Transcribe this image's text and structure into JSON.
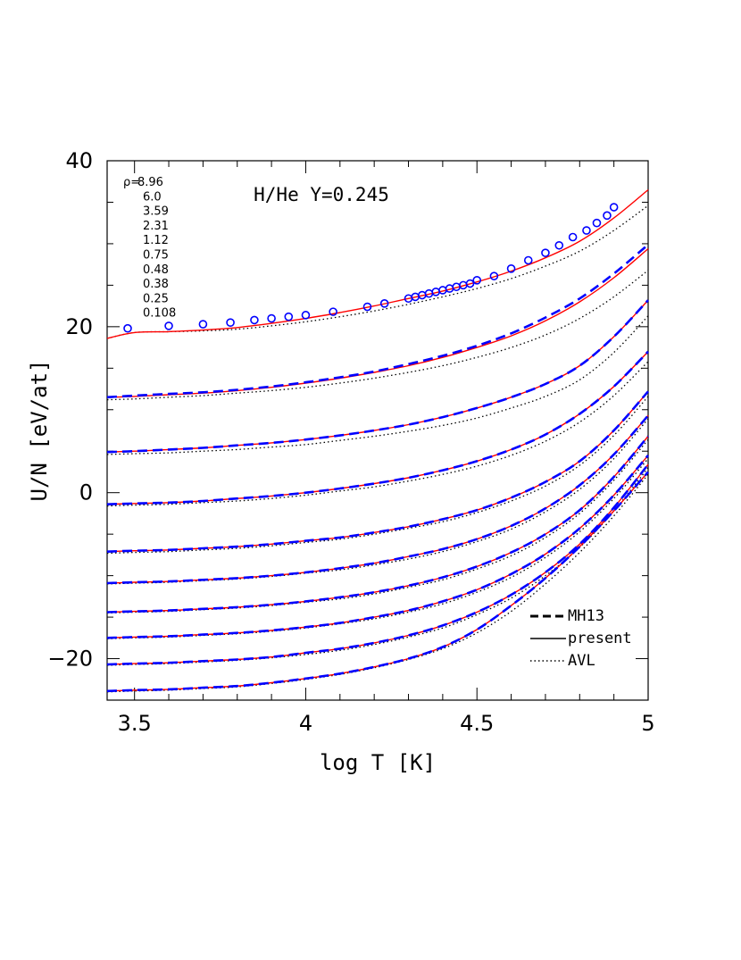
{
  "chart_data": {
    "type": "line",
    "xlabel": "log T [K]",
    "ylabel": "U/N [eV/at]",
    "xlim": [
      3.42,
      5.0
    ],
    "ylim": [
      -25,
      40
    ],
    "x_ticks": [
      3.5,
      4,
      4.5,
      5
    ],
    "y_ticks": [
      -20,
      0,
      20,
      40
    ],
    "x_tick_labels": [
      "3.5",
      "4",
      "4.5",
      "5"
    ],
    "y_tick_labels": [
      "−20",
      "0",
      "20",
      "40"
    ],
    "annotation": "H/He Y=0.245",
    "rho_prefix": "ρ=",
    "rho_labels": [
      "8.96",
      "6.0",
      "3.59",
      "2.31",
      "1.12",
      "0.75",
      "0.48",
      "0.38",
      "0.25",
      "0.108"
    ],
    "legend": [
      {
        "label": "MH13",
        "style": "dashed"
      },
      {
        "label": "present",
        "style": "solid"
      },
      {
        "label": "AVL",
        "style": "dotted"
      }
    ],
    "colors": {
      "present": "#ff0000",
      "MH13": "#0000ff",
      "AVL": "#000000",
      "markers": "#0000ff"
    },
    "x": [
      3.42,
      3.5,
      3.6,
      3.7,
      3.8,
      3.9,
      4.0,
      4.1,
      4.2,
      4.3,
      4.4,
      4.5,
      4.6,
      4.7,
      4.8,
      4.9,
      5.0
    ],
    "series": [
      {
        "rho": "8.96",
        "present": [
          18.6,
          19.3,
          19.4,
          19.6,
          19.9,
          20.4,
          21.0,
          21.7,
          22.5,
          23.4,
          24.3,
          25.4,
          26.7,
          28.3,
          30.3,
          33.1,
          36.5
        ],
        "avl": [
          18.6,
          19.3,
          19.4,
          19.5,
          19.7,
          20.1,
          20.6,
          21.2,
          21.9,
          22.7,
          23.6,
          24.6,
          25.8,
          27.3,
          29.1,
          31.6,
          34.6
        ]
      },
      {
        "rho": "6.0",
        "present": [
          11.5,
          11.6,
          11.8,
          12.0,
          12.3,
          12.7,
          13.2,
          13.8,
          14.5,
          15.3,
          16.3,
          17.5,
          18.9,
          20.7,
          23.0,
          25.9,
          29.4
        ],
        "avl": [
          11.2,
          11.3,
          11.5,
          11.7,
          12.0,
          12.3,
          12.7,
          13.2,
          13.8,
          14.5,
          15.3,
          16.3,
          17.5,
          19.0,
          21.0,
          23.6,
          26.8
        ],
        "mh13": [
          11.5,
          11.7,
          11.9,
          12.1,
          12.4,
          12.8,
          13.3,
          13.9,
          14.6,
          15.5,
          16.5,
          17.7,
          19.2,
          21.1,
          23.4,
          26.4,
          29.9
        ]
      },
      {
        "rho": "3.59",
        "present": [
          4.9,
          5.0,
          5.2,
          5.4,
          5.7,
          6.0,
          6.4,
          6.9,
          7.5,
          8.2,
          9.1,
          10.2,
          11.5,
          13.1,
          15.3,
          18.8,
          23.2
        ],
        "avl": [
          4.6,
          4.7,
          4.8,
          5.0,
          5.2,
          5.5,
          5.8,
          6.3,
          6.8,
          7.4,
          8.1,
          9.0,
          10.2,
          11.6,
          13.6,
          16.9,
          21.3
        ],
        "mh13": [
          4.9,
          5.0,
          5.2,
          5.4,
          5.7,
          6.0,
          6.4,
          6.9,
          7.5,
          8.2,
          9.1,
          10.2,
          11.5,
          13.1,
          15.3,
          18.8,
          23.2
        ]
      },
      {
        "rho": "2.31",
        "present": [
          -1.4,
          -1.3,
          -1.2,
          -1.0,
          -0.7,
          -0.4,
          0.0,
          0.5,
          1.1,
          1.8,
          2.7,
          3.8,
          5.2,
          7.0,
          9.5,
          12.8,
          17.0
        ],
        "avl": [
          -1.6,
          -1.5,
          -1.4,
          -1.2,
          -1.0,
          -0.7,
          -0.3,
          0.2,
          0.7,
          1.4,
          2.2,
          3.2,
          4.5,
          6.2,
          8.5,
          11.7,
          15.8
        ],
        "mh13": [
          -1.4,
          -1.3,
          -1.2,
          -1.0,
          -0.7,
          -0.4,
          0.0,
          0.5,
          1.1,
          1.8,
          2.7,
          3.8,
          5.2,
          7.0,
          9.5,
          12.8,
          17.0
        ]
      },
      {
        "rho": "1.12",
        "present": [
          -7.1,
          -7.0,
          -6.9,
          -6.7,
          -6.5,
          -6.2,
          -5.8,
          -5.4,
          -4.8,
          -4.1,
          -3.2,
          -2.1,
          -0.6,
          1.3,
          3.8,
          7.5,
          12.2
        ],
        "avl": [
          -7.3,
          -7.2,
          -7.1,
          -6.9,
          -6.7,
          -6.4,
          -6.0,
          -5.6,
          -5.0,
          -4.3,
          -3.5,
          -2.4,
          -1.0,
          0.8,
          3.3,
          6.9,
          11.6
        ],
        "mh13": [
          -7.1,
          -7.0,
          -6.9,
          -6.7,
          -6.5,
          -6.2,
          -5.8,
          -5.4,
          -4.8,
          -4.1,
          -3.2,
          -2.1,
          -0.6,
          1.3,
          3.8,
          7.5,
          12.2
        ]
      },
      {
        "rho": "0.75",
        "present": [
          -10.9,
          -10.8,
          -10.7,
          -10.5,
          -10.3,
          -10.0,
          -9.6,
          -9.1,
          -8.5,
          -7.7,
          -6.8,
          -5.6,
          -4.0,
          -1.9,
          0.9,
          4.6,
          9.3
        ],
        "avl": [
          -11.0,
          -10.9,
          -10.8,
          -10.6,
          -10.4,
          -10.1,
          -9.7,
          -9.3,
          -8.7,
          -8.0,
          -7.1,
          -5.9,
          -4.4,
          -2.3,
          0.4,
          4.1,
          8.9
        ],
        "mh13": [
          -10.9,
          -10.8,
          -10.7,
          -10.5,
          -10.3,
          -10.0,
          -9.6,
          -9.1,
          -8.5,
          -7.7,
          -6.8,
          -5.6,
          -4.0,
          -1.9,
          0.9,
          4.6,
          9.3
        ]
      },
      {
        "rho": "0.48",
        "present": [
          -14.4,
          -14.3,
          -14.2,
          -14.0,
          -13.8,
          -13.5,
          -13.1,
          -12.6,
          -12.0,
          -11.2,
          -10.2,
          -8.9,
          -7.2,
          -5.0,
          -2.1,
          1.9,
          6.8
        ],
        "avl": [
          -14.5,
          -14.4,
          -14.3,
          -14.1,
          -13.9,
          -13.6,
          -13.2,
          -12.8,
          -12.2,
          -11.4,
          -10.5,
          -9.2,
          -7.6,
          -5.4,
          -2.5,
          1.5,
          6.4
        ],
        "mh13": [
          -14.4,
          -14.3,
          -14.2,
          -14.0,
          -13.8,
          -13.5,
          -13.1,
          -12.6,
          -12.0,
          -11.2,
          -10.2,
          -8.9,
          -7.2,
          -5.0,
          -2.1,
          1.9,
          6.8
        ]
      },
      {
        "rho": "0.38",
        "present": [
          -17.5,
          -17.4,
          -17.3,
          -17.1,
          -16.9,
          -16.6,
          -16.2,
          -15.7,
          -15.0,
          -14.2,
          -13.1,
          -11.7,
          -9.8,
          -7.4,
          -4.3,
          -0.3,
          4.5
        ],
        "avl": [
          -17.6,
          -17.5,
          -17.4,
          -17.2,
          -17.0,
          -16.7,
          -16.3,
          -15.8,
          -15.2,
          -14.4,
          -13.4,
          -12.0,
          -10.2,
          -7.8,
          -4.7,
          -0.7,
          4.1
        ],
        "mh13": [
          -17.5,
          -17.4,
          -17.3,
          -17.1,
          -16.9,
          -16.6,
          -16.2,
          -15.7,
          -15.0,
          -14.2,
          -13.1,
          -11.7,
          -9.8,
          -7.4,
          -4.3,
          -0.3,
          4.5
        ]
      },
      {
        "rho": "0.25",
        "present": [
          -20.7,
          -20.6,
          -20.5,
          -20.3,
          -20.1,
          -19.8,
          -19.3,
          -18.8,
          -18.1,
          -17.2,
          -16.0,
          -14.4,
          -12.3,
          -9.6,
          -6.2,
          -1.8,
          3.4
        ],
        "avl": [
          -20.8,
          -20.7,
          -20.6,
          -20.4,
          -20.2,
          -19.9,
          -19.5,
          -19.0,
          -18.3,
          -17.4,
          -16.3,
          -14.7,
          -12.7,
          -10.0,
          -6.6,
          -2.2,
          3.0
        ],
        "mh13": [
          -20.7,
          -20.6,
          -20.5,
          -20.3,
          -20.1,
          -19.8,
          -19.3,
          -18.8,
          -18.1,
          -17.2,
          -16.0,
          -14.4,
          -12.3,
          -9.6,
          -6.2,
          -1.8,
          3.4
        ]
      },
      {
        "rho": "0.108",
        "present": [
          -23.9,
          -23.8,
          -23.7,
          -23.5,
          -23.3,
          -22.9,
          -22.4,
          -21.8,
          -21.0,
          -20.0,
          -18.6,
          -16.5,
          -13.6,
          -10.3,
          -6.5,
          -2.2,
          2.5
        ],
        "avl": [
          -24.0,
          -23.9,
          -23.8,
          -23.6,
          -23.4,
          -23.0,
          -22.5,
          -21.9,
          -21.1,
          -20.1,
          -18.8,
          -16.9,
          -14.3,
          -11.0,
          -7.2,
          -2.8,
          2.2
        ],
        "mh13": [
          -23.9,
          -23.8,
          -23.7,
          -23.5,
          -23.3,
          -22.9,
          -22.4,
          -21.8,
          -21.0,
          -20.0,
          -18.6,
          -16.5,
          -13.6,
          -10.3,
          -6.5,
          -2.2,
          2.5
        ]
      }
    ],
    "markers": {
      "style": "open-circle",
      "x": [
        3.48,
        3.6,
        3.7,
        3.78,
        3.85,
        3.9,
        3.95,
        4.0,
        4.08,
        4.18,
        4.23,
        4.3,
        4.32,
        4.34,
        4.36,
        4.38,
        4.4,
        4.42,
        4.44,
        4.46,
        4.48,
        4.5,
        4.55,
        4.6,
        4.65,
        4.7,
        4.74,
        4.78,
        4.82,
        4.85,
        4.88,
        4.9
      ],
      "y": [
        19.8,
        20.1,
        20.3,
        20.5,
        20.8,
        21.0,
        21.2,
        21.4,
        21.8,
        22.4,
        22.8,
        23.4,
        23.6,
        23.8,
        24.0,
        24.2,
        24.4,
        24.6,
        24.8,
        25.0,
        25.2,
        25.6,
        26.1,
        27.0,
        28.0,
        28.9,
        29.8,
        30.8,
        31.6,
        32.5,
        33.4,
        34.4
      ]
    }
  }
}
